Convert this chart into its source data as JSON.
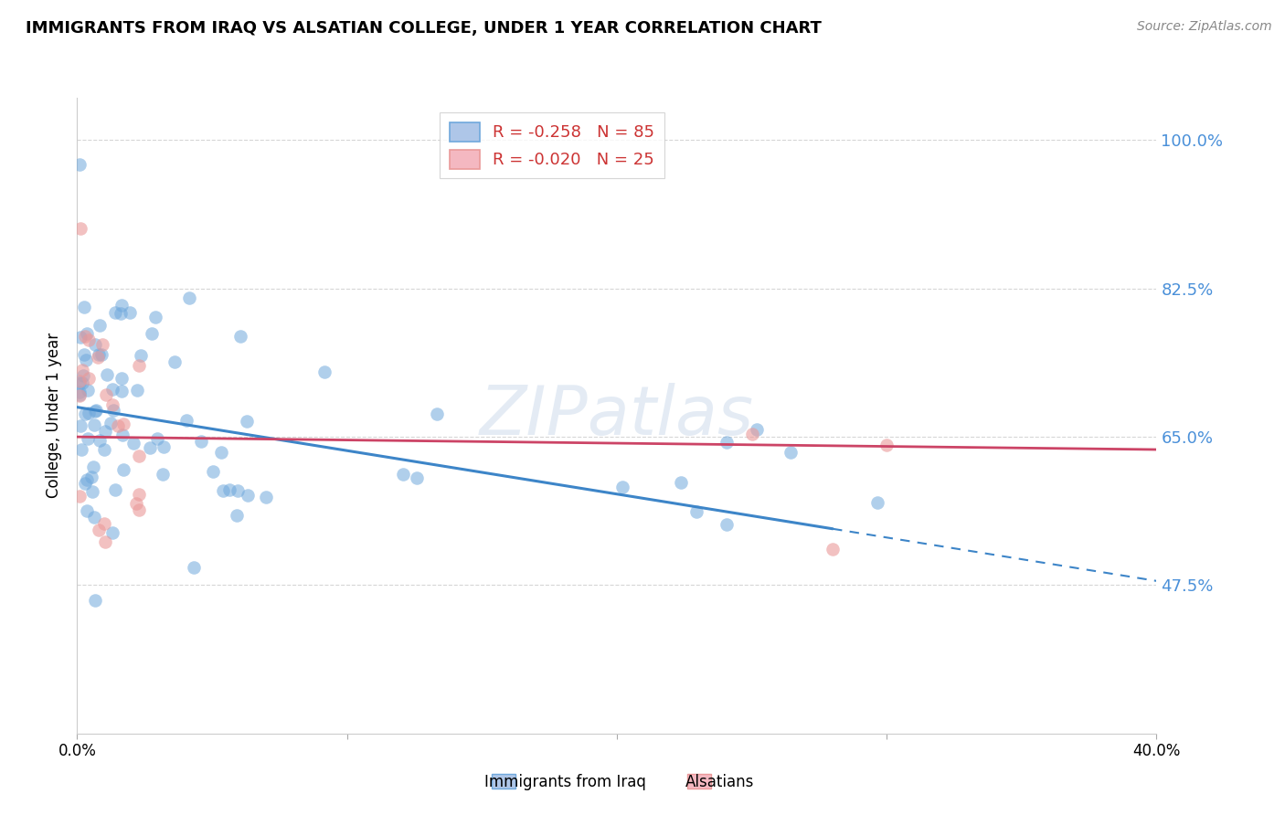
{
  "title": "IMMIGRANTS FROM IRAQ VS ALSATIAN COLLEGE, UNDER 1 YEAR CORRELATION CHART",
  "source": "Source: ZipAtlas.com",
  "ylabel": "College, Under 1 year",
  "right_yticks": [
    100.0,
    82.5,
    65.0,
    47.5
  ],
  "xlim": [
    0.0,
    40.0
  ],
  "ylim": [
    30.0,
    105.0
  ],
  "watermark": "ZIPatlas",
  "iraq_color": "#6fa8dc",
  "iraq_alpha": 0.55,
  "iraq_size": 110,
  "als_color": "#ea9999",
  "als_alpha": 0.6,
  "als_size": 110,
  "iraq_trend_color": "#3d85c8",
  "als_trend_color": "#cc4466",
  "legend_iraq_face": "#aec6e8",
  "legend_iraq_edge": "#6fa8dc",
  "legend_als_face": "#f4b8c1",
  "legend_als_edge": "#ea9999",
  "legend_iraq_label": "R = -0.258   N = 85",
  "legend_als_label": "R = -0.020   N = 25",
  "bottom_label_iraq": "Immigrants from Iraq",
  "bottom_label_als": "Alsatians",
  "iraq_trend_y0": 68.5,
  "iraq_trend_y40": 48.0,
  "iraq_solid_end_x": 28.0,
  "als_trend_y0": 65.0,
  "als_trend_y40": 63.5
}
